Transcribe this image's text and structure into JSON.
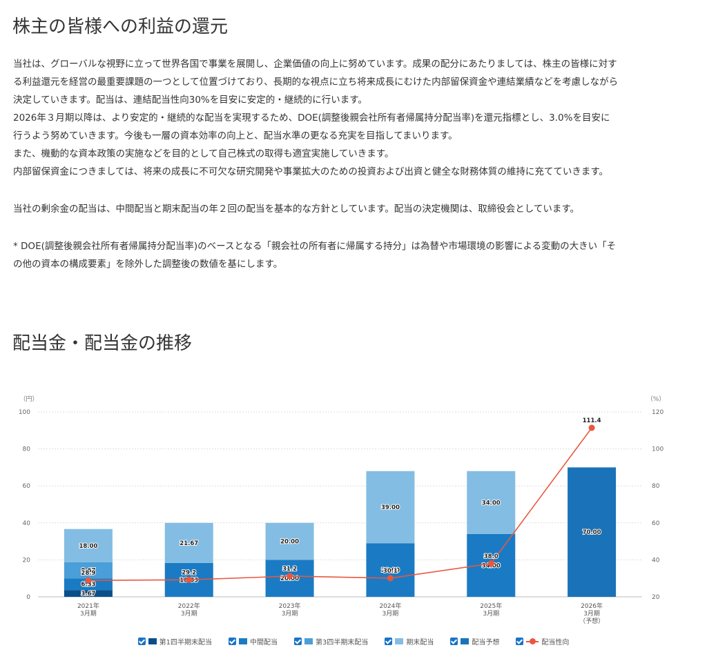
{
  "section1": {
    "title": "株主の皆様への利益の還元",
    "main_lines": [
      "当社は、グローバルな視野に立って世界各国で事業を展開し、企業価値の向上に努めています。成果の配分にあたりましては、株主の皆様に対す",
      "る利益還元を経営の最重要課題の一つとして位置づけており、長期的な視点に立ち将来成長にむけた内部留保資金や連結業績などを考慮しながら",
      "決定していきます。配当は、連結配当性向30%を目安に安定的・継続的に行います。",
      "2026年３月期以降は、より安定的・継続的な配当を実現するため、DOE(調整後親会社所有者帰属持分配当率)を還元指標とし、3.0%を目安に",
      "行うよう努めていきます。今後も一層の資本効率の向上と、配当水準の更なる充実を目指してまいります。",
      "また、機動的な資本政策の実施などを目的として自己株式の取得も適宜実施していきます。",
      "内部留保資金につきましては、将来の成長に不可欠な研究開発や事業拡大のための投資および出資と健全な財務体質の維持に充てていきます。"
    ],
    "policy_text": "当社の剰余金の配当は、中間配当と期末配当の年２回の配当を基本的な方針としています。配当の決定機関は、取締役会としています。",
    "note_lines": [
      "* DOE(調整後親会社所有者帰属持分配当率)のベースとなる「親会社の所有者に帰属する持分」は為替や市場環境の影響による変動の大きい「そ",
      "の他の資本の構成要素」を除外した調整後の数値を基にします。"
    ]
  },
  "section2": {
    "title": "配当金・配当金の推移"
  },
  "chart_data": {
    "type": "bar",
    "stacked": true,
    "left_unit": "（円）",
    "right_unit": "（%）",
    "ylim_left": [
      0,
      100
    ],
    "left_ticks": [
      "0",
      "20",
      "40",
      "60",
      "80",
      "100"
    ],
    "ylim_right": [
      20,
      120
    ],
    "right_ticks": [
      "20",
      "40",
      "60",
      "80",
      "100",
      "120"
    ],
    "grid": true,
    "categories": [
      [
        "2021年",
        "3月期"
      ],
      [
        "2022年",
        "3月期"
      ],
      [
        "2023年",
        "3月期"
      ],
      [
        "2024年",
        "3月期"
      ],
      [
        "2025年",
        "3月期"
      ],
      [
        "2026年",
        "3月期",
        "（予想）"
      ]
    ],
    "series": [
      {
        "name": "第1四半期末配当",
        "color": "#0b4f8a",
        "values": [
          3.67,
          null,
          null,
          null,
          null,
          null
        ],
        "labels": [
          "3.67",
          "",
          "",
          "",
          "",
          ""
        ]
      },
      {
        "name": "中間配当",
        "color": "#1a7bc4",
        "values": [
          6.33,
          18.33,
          20.0,
          29.0,
          34.0,
          null
        ],
        "labels": [
          "6.33",
          "18.33",
          "20.00",
          "29.00",
          "34.00",
          ""
        ]
      },
      {
        "name": "第3四半期末配当",
        "color": "#4a9fd8",
        "values": [
          8.67,
          null,
          null,
          null,
          null,
          null
        ],
        "labels": [
          "8.67",
          "",
          "",
          "",
          "",
          ""
        ]
      },
      {
        "name": "期末配当",
        "color": "#84bde3",
        "values": [
          18.0,
          21.67,
          20.0,
          39.0,
          34.0,
          null
        ],
        "labels": [
          "18.00",
          "21.67",
          "20.00",
          "39.00",
          "34.00",
          ""
        ]
      },
      {
        "name": "配当予想",
        "color": "#1a73b8",
        "values": [
          null,
          null,
          null,
          null,
          null,
          70.0
        ],
        "labels": [
          "",
          "",
          "",
          "",
          "",
          "70.00"
        ]
      }
    ],
    "line_series": {
      "name": "配当性向",
      "color": "#e9573f",
      "axis": "right",
      "values": [
        28.9,
        29.2,
        31.2,
        30.1,
        38.0,
        111.4
      ],
      "labels": [
        "28.9",
        "29.2",
        "31.2",
        "30.1",
        "38.0",
        "111.4"
      ]
    },
    "legend_position": "bottom"
  }
}
